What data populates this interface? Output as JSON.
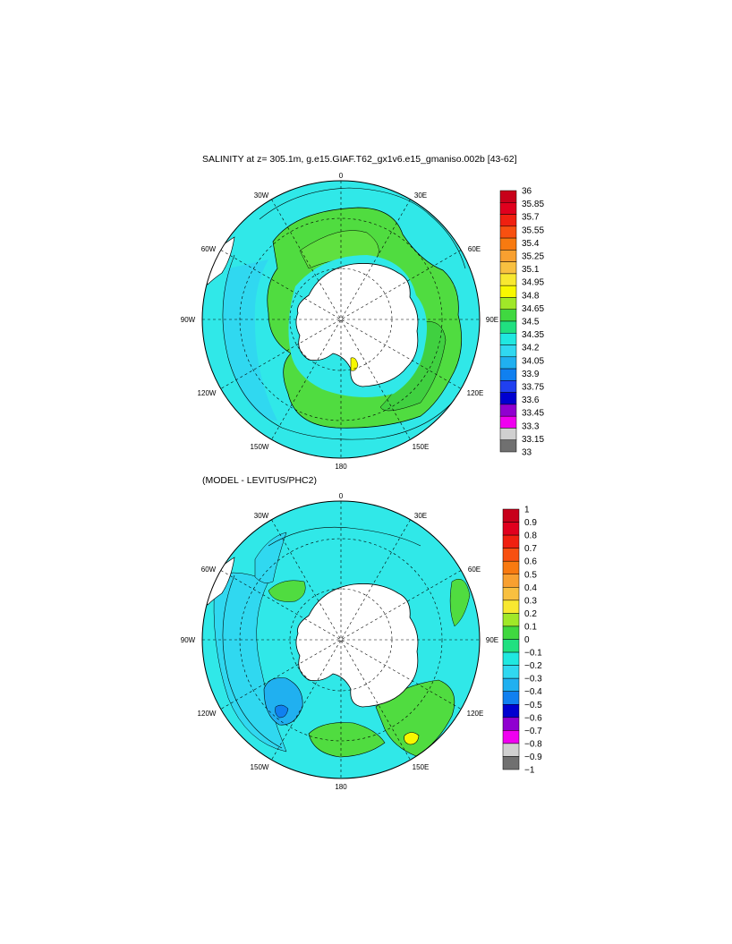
{
  "panels": [
    {
      "id": "salinity",
      "title": "SALINITY at z= 305.1m, g.e15.GIAF.T62_gx1v6.e15_gmaniso.002b [43-62]",
      "lon_labels": {
        "n": "0",
        "e30": "30E",
        "e60": "60E",
        "e90": "90E",
        "e120": "120E",
        "e150": "150E",
        "s": "180",
        "w150": "150W",
        "w120": "120W",
        "w90": "90W",
        "w60": "60W",
        "w30": "30W"
      },
      "colorbar": {
        "labels": [
          "36",
          "35.85",
          "35.7",
          "35.55",
          "35.4",
          "35.25",
          "35.1",
          "34.95",
          "34.8",
          "34.65",
          "34.5",
          "34.35",
          "34.2",
          "34.05",
          "33.9",
          "33.75",
          "33.6",
          "33.45",
          "33.3",
          "33.15",
          "33"
        ],
        "colors": [
          "#c8001a",
          "#e0001e",
          "#f02010",
          "#f85010",
          "#f87a10",
          "#f8a030",
          "#f8c040",
          "#f8e830",
          "#f8f800",
          "#a0e828",
          "#40d840",
          "#20e080",
          "#20e8e0",
          "#30d8f0",
          "#20b0f0",
          "#1080f0",
          "#2040f0",
          "#0000d0",
          "#9000d0",
          "#f000f0",
          "#d0d0d0",
          "#707070"
        ]
      }
    },
    {
      "id": "difference",
      "title": "(MODEL - LEVITUS/PHC2)",
      "lon_labels": {
        "n": "0",
        "e30": "30E",
        "e60": "60E",
        "e90": "90E",
        "e120": "120E",
        "e150": "150E",
        "s": "180",
        "w150": "150W",
        "w120": "120W",
        "w90": "90W",
        "w60": "60W",
        "w30": "30W"
      },
      "colorbar": {
        "labels": [
          "1",
          "0.9",
          "0.8",
          "0.7",
          "0.6",
          "0.5",
          "0.4",
          "0.3",
          "0.2",
          "0.1",
          "0",
          "−0.1",
          "−0.2",
          "−0.3",
          "−0.4",
          "−0.5",
          "−0.6",
          "−0.7",
          "−0.8",
          "−0.9",
          "−1"
        ],
        "colors": [
          "#c8001a",
          "#e0001e",
          "#f02010",
          "#f85010",
          "#f87a10",
          "#f8a030",
          "#f8c040",
          "#f8e830",
          "#a0e828",
          "#40d840",
          "#20e080",
          "#20e8e0",
          "#30d8f0",
          "#20b0f0",
          "#1080f0",
          "#0000d0",
          "#9000d0",
          "#f000f0",
          "#d0d0d0",
          "#707070"
        ]
      }
    }
  ],
  "colors": {
    "land": "#ffffff",
    "ocean_base": "#30e8e8",
    "green": "#50dc40",
    "contour": "#000000"
  }
}
